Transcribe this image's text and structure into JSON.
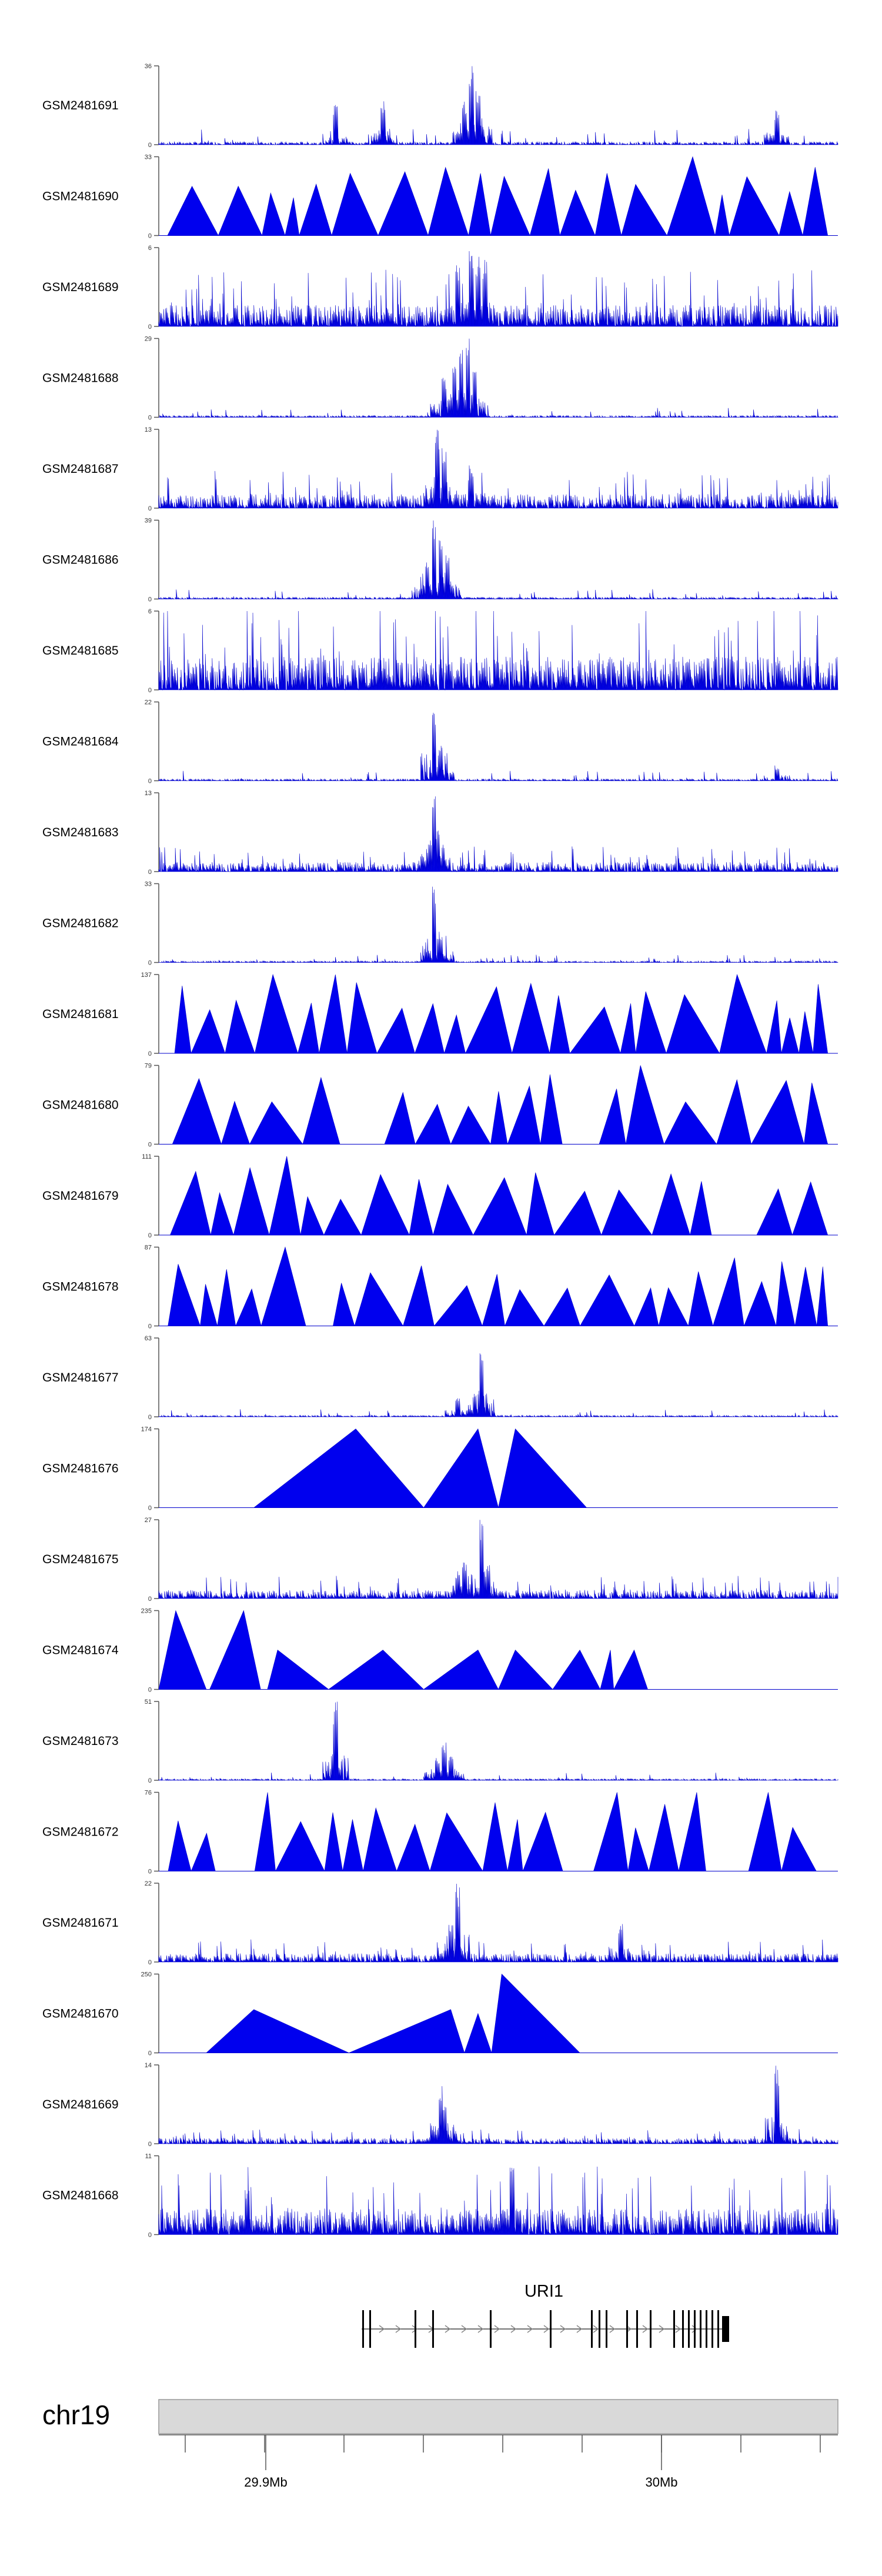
{
  "colors": {
    "track_fill": "#0000EE",
    "track_stroke": "#0000CC",
    "axis": "#555555",
    "chrom_fill": "#D9D9D9",
    "chrom_stroke": "#999999"
  },
  "tracks": [
    {
      "name": "GSM2481691",
      "ymax": 36,
      "ymin": 0,
      "pattern": "peaks_noise",
      "bg": 0.08,
      "peaks": [
        [
          0.46,
          1.0
        ],
        [
          0.45,
          0.55
        ],
        [
          0.33,
          0.58
        ],
        [
          0.26,
          0.52
        ],
        [
          0.91,
          0.45
        ],
        [
          0.47,
          0.7
        ]
      ]
    },
    {
      "name": "GSM2481690",
      "ymax": 33,
      "ymin": 0,
      "pattern": "triangles",
      "seed": 3
    },
    {
      "name": "GSM2481689",
      "ymax": 6,
      "ymin": 0,
      "pattern": "dense",
      "bg": 0.45,
      "peaks": [
        [
          0.46,
          1.0
        ],
        [
          0.47,
          0.9
        ],
        [
          0.48,
          0.85
        ],
        [
          0.44,
          0.8
        ]
      ]
    },
    {
      "name": "GSM2481688",
      "ymax": 29,
      "ymin": 0,
      "pattern": "peaks_noise",
      "bg": 0.05,
      "peaks": [
        [
          0.435,
          0.75
        ],
        [
          0.445,
          0.9
        ],
        [
          0.455,
          1.0
        ],
        [
          0.465,
          0.6
        ],
        [
          0.42,
          0.5
        ]
      ]
    },
    {
      "name": "GSM2481687",
      "ymax": 13,
      "ymin": 0,
      "pattern": "dense",
      "bg": 0.3,
      "peaks": [
        [
          0.41,
          1.0
        ],
        [
          0.42,
          0.8
        ],
        [
          0.46,
          0.55
        ]
      ]
    },
    {
      "name": "GSM2481686",
      "ymax": 39,
      "ymin": 0,
      "pattern": "peaks_noise",
      "bg": 0.05,
      "peaks": [
        [
          0.405,
          1.0
        ],
        [
          0.415,
          0.75
        ],
        [
          0.425,
          0.6
        ],
        [
          0.395,
          0.5
        ]
      ]
    },
    {
      "name": "GSM2481685",
      "ymax": 6,
      "ymin": 0,
      "pattern": "dense",
      "bg": 0.7,
      "peaks": []
    },
    {
      "name": "GSM2481684",
      "ymax": 22,
      "ymin": 0,
      "pattern": "peaks_noise",
      "bg": 0.05,
      "peaks": [
        [
          0.405,
          1.0
        ],
        [
          0.415,
          0.45
        ],
        [
          0.91,
          0.2
        ]
      ]
    },
    {
      "name": "GSM2481683",
      "ymax": 13,
      "ymin": 0,
      "pattern": "dense",
      "bg": 0.2,
      "peaks": [
        [
          0.405,
          1.0
        ],
        [
          0.41,
          0.55
        ],
        [
          0.4,
          0.45
        ]
      ]
    },
    {
      "name": "GSM2481682",
      "ymax": 33,
      "ymin": 0,
      "pattern": "peaks_noise",
      "bg": 0.04,
      "peaks": [
        [
          0.405,
          1.0
        ],
        [
          0.415,
          0.4
        ]
      ]
    },
    {
      "name": "GSM2481681",
      "ymax": 137,
      "ymin": 0,
      "pattern": "triangles",
      "seed": 11
    },
    {
      "name": "GSM2481680",
      "ymax": 79,
      "ymin": 0,
      "pattern": "triangles",
      "seed": 17
    },
    {
      "name": "GSM2481679",
      "ymax": 111,
      "ymin": 0,
      "pattern": "triangles",
      "seed": 23
    },
    {
      "name": "GSM2481678",
      "ymax": 87,
      "ymin": 0,
      "pattern": "triangles",
      "seed": 29
    },
    {
      "name": "GSM2481677",
      "ymax": 63,
      "ymin": 0,
      "pattern": "peaks_noise",
      "bg": 0.04,
      "peaks": [
        [
          0.475,
          1.0
        ],
        [
          0.44,
          0.25
        ],
        [
          0.465,
          0.3
        ]
      ]
    },
    {
      "name": "GSM2481676",
      "ymax": 174,
      "ymin": 0,
      "pattern": "triangles_big",
      "seed": 0
    },
    {
      "name": "GSM2481675",
      "ymax": 27,
      "ymin": 0,
      "pattern": "dense",
      "bg": 0.18,
      "peaks": [
        [
          0.475,
          1.0
        ],
        [
          0.45,
          0.5
        ],
        [
          0.44,
          0.35
        ],
        [
          0.485,
          0.45
        ]
      ]
    },
    {
      "name": "GSM2481674",
      "ymax": 235,
      "ymin": 0,
      "pattern": "triangles_mid",
      "seed": 1
    },
    {
      "name": "GSM2481673",
      "ymax": 51,
      "ymin": 0,
      "pattern": "peaks_noise",
      "bg": 0.04,
      "peaks": [
        [
          0.26,
          1.0
        ],
        [
          0.42,
          0.5
        ],
        [
          0.43,
          0.35
        ],
        [
          0.41,
          0.3
        ]
      ]
    },
    {
      "name": "GSM2481672",
      "ymax": 76,
      "ymin": 0,
      "pattern": "triangles",
      "seed": 41
    },
    {
      "name": "GSM2481671",
      "ymax": 22,
      "ymin": 0,
      "pattern": "dense",
      "bg": 0.18,
      "peaks": [
        [
          0.44,
          1.0
        ],
        [
          0.43,
          0.55
        ],
        [
          0.68,
          0.5
        ]
      ]
    },
    {
      "name": "GSM2481670",
      "ymax": 250,
      "ymin": 0,
      "pattern": "triangles_few",
      "seed": 2
    },
    {
      "name": "GSM2481669",
      "ymax": 14,
      "ymin": 0,
      "pattern": "dense",
      "bg": 0.12,
      "peaks": [
        [
          0.91,
          1.0
        ],
        [
          0.415,
          0.75
        ],
        [
          0.42,
          0.5
        ]
      ]
    },
    {
      "name": "GSM2481668",
      "ymax": 11,
      "ymin": 0,
      "pattern": "dense",
      "bg": 0.55,
      "peaks": [
        [
          0.52,
          0.95
        ],
        [
          0.13,
          0.6
        ]
      ]
    }
  ],
  "gene": {
    "name": "URI1"
  },
  "chromosome": {
    "name": "chr19"
  },
  "axis": {
    "ticks": [
      {
        "label": "29.9Mb"
      },
      {
        "label": "30Mb"
      }
    ]
  }
}
